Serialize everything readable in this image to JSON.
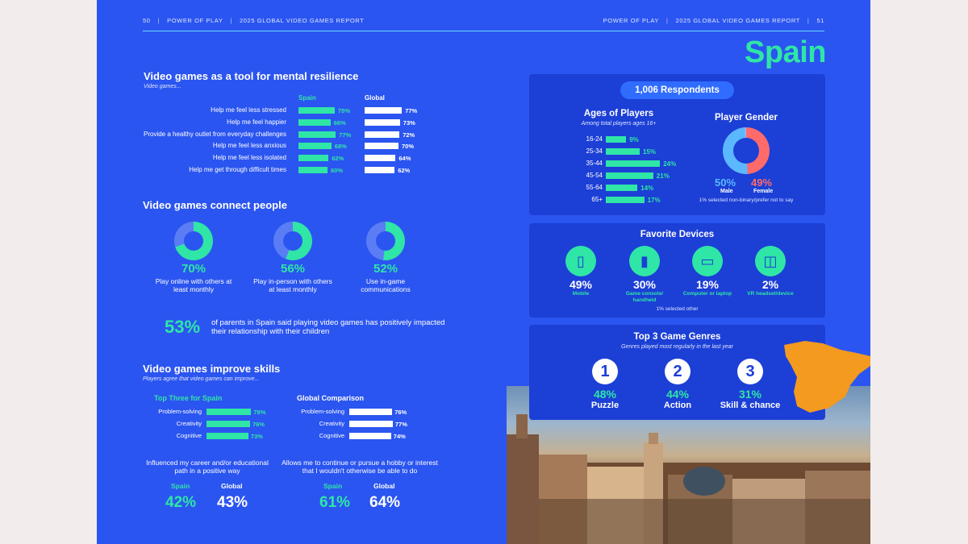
{
  "header": {
    "left_page_number": "50",
    "left_section": "POWER OF PLAY",
    "left_report": "2025 GLOBAL VIDEO GAMES REPORT",
    "right_section": "POWER OF PLAY",
    "right_report": "2025 GLOBAL VIDEO GAMES REPORT",
    "right_page_number": "51"
  },
  "country_title": "Spain",
  "resilience": {
    "title": "Video games as a tool for mental resilience",
    "subtitle": "Video games...",
    "col_spain": "Spain",
    "col_global": "Global",
    "rows": [
      {
        "label": "Help me feel less stressed",
        "spain": "75%",
        "global": "77%",
        "spain_value": 75,
        "global_value": 77
      },
      {
        "label": "Help me feel happier",
        "spain": "66%",
        "global": "73%",
        "spain_value": 66,
        "global_value": 73
      },
      {
        "label": "Provide a healthy outlet from everyday challenges",
        "spain": "77%",
        "global": "72%",
        "spain_value": 77,
        "global_value": 72
      },
      {
        "label": "Help me feel less anxious",
        "spain": "68%",
        "global": "70%",
        "spain_value": 68,
        "global_value": 70
      },
      {
        "label": "Help me feel less isolated",
        "spain": "62%",
        "global": "64%",
        "spain_value": 62,
        "global_value": 64
      },
      {
        "label": "Help me get through difficult times",
        "spain": "60%",
        "global": "62%",
        "spain_value": 60,
        "global_value": 62
      }
    ]
  },
  "connect": {
    "title": "Video games connect people",
    "items": [
      {
        "pct": "70%",
        "value": 70,
        "label": "Play online with others at least monthly"
      },
      {
        "pct": "56%",
        "value": 56,
        "label": "Play in-person with others at least monthly"
      },
      {
        "pct": "52%",
        "value": 52,
        "label": "Use in-game communications"
      }
    ],
    "parents_pct": "53%",
    "parents_text": "of parents in Spain said playing video games has positively impacted their relationship with their children"
  },
  "skills": {
    "title": "Video games improve skills",
    "subtitle": "Players agree that video games can improve...",
    "spain_heading": "Top Three for Spain",
    "global_heading": "Global Comparison",
    "spain_rows": [
      {
        "label": "Problem-solving",
        "pct": "78%",
        "value": 78
      },
      {
        "label": "Creativity",
        "pct": "76%",
        "value": 76
      },
      {
        "label": "Cognitive",
        "pct": "73%",
        "value": 73
      }
    ],
    "global_rows": [
      {
        "label": "Problem-solving",
        "pct": "76%",
        "value": 76
      },
      {
        "label": "Creativity",
        "pct": "77%",
        "value": 77
      },
      {
        "label": "Cognitive",
        "pct": "74%",
        "value": 74
      }
    ],
    "career_text": "Influenced my career and/or educational path in a positive way",
    "career_spain_label": "Spain",
    "career_global_label": "Global",
    "career_spain": "42%",
    "career_global": "43%",
    "hobby_text": "Allows me to continue or pursue a hobby or interest that I wouldn't otherwise be able to do",
    "hobby_spain_label": "Spain",
    "hobby_global_label": "Global",
    "hobby_spain": "61%",
    "hobby_global": "64%"
  },
  "respondents": "1,006 Respondents",
  "ages": {
    "title": "Ages of Players",
    "subtitle": "Among total players ages 16+",
    "rows": [
      {
        "range": "16-24",
        "pct": "9%",
        "value": 9
      },
      {
        "range": "25-34",
        "pct": "15%",
        "value": 15
      },
      {
        "range": "35-44",
        "pct": "24%",
        "value": 24
      },
      {
        "range": "45-54",
        "pct": "21%",
        "value": 21
      },
      {
        "range": "55-64",
        "pct": "14%",
        "value": 14
      },
      {
        "range": "65+",
        "pct": "17%",
        "value": 17
      }
    ]
  },
  "gender": {
    "title": "Player Gender",
    "male_pct": "50%",
    "male_value": 50,
    "male_label": "Male",
    "female_pct": "49%",
    "female_value": 49,
    "female_label": "Female",
    "note": "1% selected non-binary/prefer not to say"
  },
  "devices": {
    "title": "Favorite Devices",
    "items": [
      {
        "pct": "49%",
        "label": "Mobile",
        "icon": "mobile-icon"
      },
      {
        "pct": "30%",
        "label": "Game console/ handheld",
        "icon": "console-icon"
      },
      {
        "pct": "19%",
        "label": "Computer or laptop",
        "icon": "laptop-icon"
      },
      {
        "pct": "2%",
        "label": "VR headset/device",
        "icon": "vr-headset-icon"
      }
    ],
    "note": "1% selected other"
  },
  "genres": {
    "title": "Top 3 Game Genres",
    "subtitle": "Genres played most regularly in the last year",
    "items": [
      {
        "rank": "1",
        "pct": "48%",
        "name": "Puzzle"
      },
      {
        "rank": "2",
        "pct": "44%",
        "name": "Action"
      },
      {
        "rank": "3",
        "pct": "31%",
        "name": "Skill & chance"
      }
    ]
  },
  "colors": {
    "page_blue": "#2b55f0",
    "panel_blue": "#1c3fd6",
    "accent_green": "#2fe6a6",
    "male_blue": "#5bb8ff",
    "female_red": "#ff6b6b",
    "map_orange": "#f39a1f"
  }
}
